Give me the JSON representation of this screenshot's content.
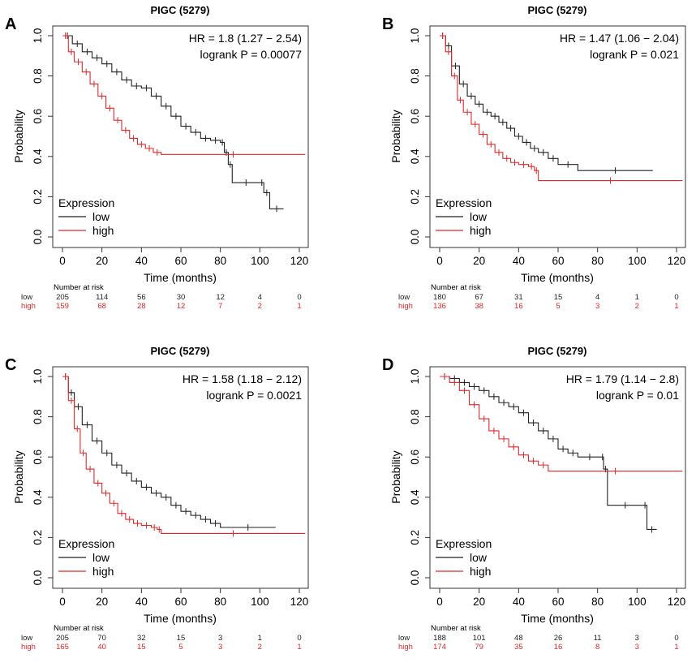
{
  "colors": {
    "low": "#222222",
    "high": "#e0282a",
    "axis": "#333333"
  },
  "chart_data": [
    {
      "type": "line",
      "panel": "A",
      "title": "PIGC (5279)",
      "xlabel": "Time (months)",
      "ylabel": "Probability",
      "xlim": [
        0,
        125
      ],
      "ylim": [
        0,
        1
      ],
      "xticks": [
        "0",
        "20",
        "40",
        "60",
        "80",
        "100",
        "120"
      ],
      "yticks": [
        "0.0",
        "0.2",
        "0.4",
        "0.6",
        "0.8",
        "1.0"
      ],
      "hr_text": "HR = 1.8 (1.27 − 2.54)",
      "p_text": "logrank P = 0.00077",
      "legend_title": "Expression",
      "risk_header": "Number at risk",
      "series": [
        {
          "name": "low",
          "color": "#222222",
          "points": [
            [
              0,
              1.0
            ],
            [
              5,
              0.96
            ],
            [
              10,
              0.92
            ],
            [
              15,
              0.89
            ],
            [
              20,
              0.86
            ],
            [
              25,
              0.82
            ],
            [
              30,
              0.78
            ],
            [
              35,
              0.75
            ],
            [
              40,
              0.74
            ],
            [
              45,
              0.7
            ],
            [
              50,
              0.65
            ],
            [
              55,
              0.6
            ],
            [
              60,
              0.55
            ],
            [
              65,
              0.52
            ],
            [
              70,
              0.49
            ],
            [
              75,
              0.48
            ],
            [
              80,
              0.47
            ],
            [
              82,
              0.42
            ],
            [
              84,
              0.36
            ],
            [
              86,
              0.27
            ],
            [
              100,
              0.27
            ],
            [
              102,
              0.22
            ],
            [
              105,
              0.14
            ],
            [
              112,
              0.14
            ]
          ],
          "risk": [
            "205",
            "114",
            "56",
            "30",
            "12",
            "4",
            "0"
          ]
        },
        {
          "name": "high",
          "color": "#e0282a",
          "points": [
            [
              0,
              1.0
            ],
            [
              3,
              0.92
            ],
            [
              6,
              0.87
            ],
            [
              10,
              0.82
            ],
            [
              14,
              0.76
            ],
            [
              18,
              0.7
            ],
            [
              22,
              0.64
            ],
            [
              26,
              0.58
            ],
            [
              30,
              0.53
            ],
            [
              34,
              0.49
            ],
            [
              38,
              0.46
            ],
            [
              42,
              0.44
            ],
            [
              46,
              0.42
            ],
            [
              50,
              0.41
            ],
            [
              123,
              0.41
            ]
          ],
          "risk": [
            "159",
            "68",
            "28",
            "12",
            "7",
            "2",
            "1"
          ]
        }
      ]
    },
    {
      "type": "line",
      "panel": "B",
      "title": "PIGC (5279)",
      "xlabel": "Time (months)",
      "ylabel": "Probability",
      "xlim": [
        0,
        125
      ],
      "ylim": [
        0,
        1
      ],
      "xticks": [
        "0",
        "20",
        "40",
        "60",
        "80",
        "100",
        "120"
      ],
      "yticks": [
        "0.0",
        "0.2",
        "0.4",
        "0.6",
        "0.8",
        "1.0"
      ],
      "hr_text": "HR = 1.47 (1.06 − 2.04)",
      "p_text": "logrank P = 0.021",
      "legend_title": "Expression",
      "risk_header": "Number at risk",
      "series": [
        {
          "name": "low",
          "color": "#222222",
          "points": [
            [
              0,
              1.0
            ],
            [
              3,
              0.95
            ],
            [
              6,
              0.85
            ],
            [
              10,
              0.76
            ],
            [
              14,
              0.7
            ],
            [
              18,
              0.66
            ],
            [
              22,
              0.62
            ],
            [
              26,
              0.6
            ],
            [
              30,
              0.57
            ],
            [
              34,
              0.54
            ],
            [
              38,
              0.5
            ],
            [
              42,
              0.47
            ],
            [
              46,
              0.44
            ],
            [
              50,
              0.42
            ],
            [
              55,
              0.39
            ],
            [
              60,
              0.36
            ],
            [
              70,
              0.33
            ],
            [
              108,
              0.33
            ]
          ],
          "risk": [
            "180",
            "67",
            "31",
            "15",
            "4",
            "1",
            "0"
          ]
        },
        {
          "name": "high",
          "color": "#e0282a",
          "points": [
            [
              0,
              1.0
            ],
            [
              3,
              0.92
            ],
            [
              6,
              0.8
            ],
            [
              9,
              0.68
            ],
            [
              12,
              0.62
            ],
            [
              16,
              0.56
            ],
            [
              20,
              0.51
            ],
            [
              24,
              0.46
            ],
            [
              28,
              0.42
            ],
            [
              32,
              0.39
            ],
            [
              36,
              0.37
            ],
            [
              40,
              0.36
            ],
            [
              45,
              0.35
            ],
            [
              48,
              0.33
            ],
            [
              50,
              0.28
            ],
            [
              123,
              0.28
            ]
          ],
          "risk": [
            "136",
            "38",
            "16",
            "5",
            "3",
            "2",
            "1"
          ]
        }
      ]
    },
    {
      "type": "line",
      "panel": "C",
      "title": "PIGC (5279)",
      "xlabel": "Time (months)",
      "ylabel": "Probability",
      "xlim": [
        0,
        125
      ],
      "ylim": [
        0,
        1
      ],
      "xticks": [
        "0",
        "20",
        "40",
        "60",
        "80",
        "100",
        "120"
      ],
      "yticks": [
        "0.0",
        "0.2",
        "0.4",
        "0.6",
        "0.8",
        "1.0"
      ],
      "hr_text": "HR = 1.58 (1.18 − 2.12)",
      "p_text": "logrank P = 0.0021",
      "legend_title": "Expression",
      "risk_header": "Number at risk",
      "series": [
        {
          "name": "low",
          "color": "#222222",
          "points": [
            [
              0,
              1.0
            ],
            [
              3,
              0.92
            ],
            [
              6,
              0.85
            ],
            [
              10,
              0.76
            ],
            [
              15,
              0.68
            ],
            [
              20,
              0.62
            ],
            [
              25,
              0.56
            ],
            [
              30,
              0.52
            ],
            [
              35,
              0.48
            ],
            [
              40,
              0.45
            ],
            [
              45,
              0.42
            ],
            [
              50,
              0.4
            ],
            [
              55,
              0.36
            ],
            [
              60,
              0.33
            ],
            [
              65,
              0.31
            ],
            [
              70,
              0.29
            ],
            [
              75,
              0.27
            ],
            [
              80,
              0.25
            ],
            [
              108,
              0.25
            ]
          ],
          "risk": [
            "205",
            "70",
            "32",
            "15",
            "3",
            "1",
            "0"
          ]
        },
        {
          "name": "high",
          "color": "#e0282a",
          "points": [
            [
              0,
              1.0
            ],
            [
              3,
              0.88
            ],
            [
              6,
              0.74
            ],
            [
              9,
              0.62
            ],
            [
              12,
              0.54
            ],
            [
              16,
              0.47
            ],
            [
              20,
              0.42
            ],
            [
              24,
              0.37
            ],
            [
              28,
              0.32
            ],
            [
              32,
              0.29
            ],
            [
              36,
              0.27
            ],
            [
              40,
              0.26
            ],
            [
              45,
              0.25
            ],
            [
              48,
              0.24
            ],
            [
              50,
              0.22
            ],
            [
              123,
              0.22
            ]
          ],
          "risk": [
            "165",
            "40",
            "15",
            "5",
            "3",
            "2",
            "1"
          ]
        }
      ]
    },
    {
      "type": "line",
      "panel": "D",
      "title": "PIGC (5279)",
      "xlabel": "Time (months)",
      "ylabel": "Probability",
      "xlim": [
        0,
        125
      ],
      "ylim": [
        0,
        1
      ],
      "xticks": [
        "0",
        "20",
        "40",
        "60",
        "80",
        "100",
        "120"
      ],
      "yticks": [
        "0.0",
        "0.2",
        "0.4",
        "0.6",
        "0.8",
        "1.0"
      ],
      "hr_text": "HR = 1.79 (1.14 − 2.8)",
      "p_text": "logrank P = 0.01",
      "legend_title": "Expression",
      "risk_header": "Number at risk",
      "series": [
        {
          "name": "low",
          "color": "#222222",
          "points": [
            [
              0,
              1.0
            ],
            [
              5,
              0.99
            ],
            [
              10,
              0.97
            ],
            [
              15,
              0.95
            ],
            [
              20,
              0.93
            ],
            [
              25,
              0.9
            ],
            [
              30,
              0.87
            ],
            [
              35,
              0.85
            ],
            [
              40,
              0.82
            ],
            [
              45,
              0.77
            ],
            [
              50,
              0.73
            ],
            [
              55,
              0.69
            ],
            [
              60,
              0.64
            ],
            [
              65,
              0.62
            ],
            [
              70,
              0.6
            ],
            [
              82,
              0.6
            ],
            [
              83,
              0.54
            ],
            [
              85,
              0.36
            ],
            [
              103,
              0.36
            ],
            [
              105,
              0.24
            ],
            [
              110,
              0.24
            ]
          ],
          "risk": [
            "188",
            "101",
            "48",
            "26",
            "11",
            "3",
            "0"
          ]
        },
        {
          "name": "high",
          "color": "#e0282a",
          "points": [
            [
              0,
              1.0
            ],
            [
              5,
              0.97
            ],
            [
              10,
              0.93
            ],
            [
              15,
              0.86
            ],
            [
              20,
              0.79
            ],
            [
              25,
              0.73
            ],
            [
              30,
              0.69
            ],
            [
              35,
              0.65
            ],
            [
              40,
              0.61
            ],
            [
              45,
              0.58
            ],
            [
              50,
              0.56
            ],
            [
              55,
              0.53
            ],
            [
              123,
              0.53
            ]
          ],
          "risk": [
            "174",
            "79",
            "35",
            "16",
            "8",
            "3",
            "1"
          ]
        }
      ]
    }
  ]
}
